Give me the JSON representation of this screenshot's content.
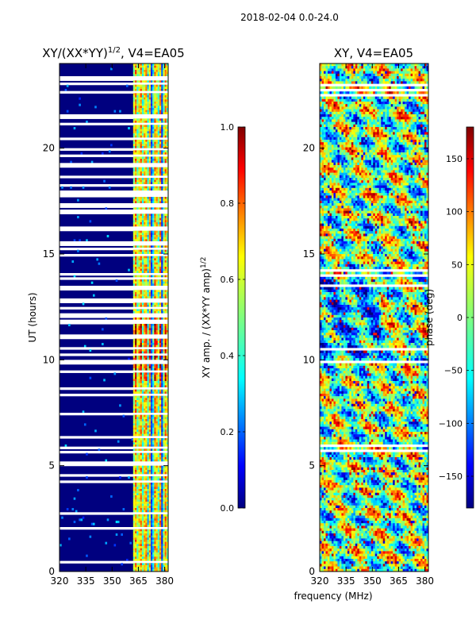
{
  "suptitle": "2018-02-04 0.0-24.0",
  "colors": {
    "jet": [
      "#00007f",
      "#0000ff",
      "#007fff",
      "#00ffff",
      "#7fff7f",
      "#ffff00",
      "#ff7f00",
      "#ff0000",
      "#7f0000"
    ],
    "blank_row": "#ffffff"
  },
  "chart_data": [
    {
      "type": "heatmap",
      "title_main": "XY/(XX*YY)",
      "title_exponent": "1/2",
      "title_tail": ", V4=EA05",
      "xlabel": "",
      "ylabel": "UT (hours)",
      "xlim": [
        320,
        382
      ],
      "ylim": [
        0,
        24
      ],
      "xticks": [
        320,
        335,
        350,
        365,
        380
      ],
      "yticks": [
        0,
        5,
        10,
        15,
        20
      ],
      "colorbar": {
        "label_main": "XY amp. / (XX*YY amp)",
        "label_exponent": "1/2",
        "range": [
          0.0,
          1.0
        ],
        "ticks": [
          "0.0",
          "0.2",
          "0.4",
          "0.6",
          "0.8",
          "1.0"
        ]
      },
      "blank_hours": [
        23.3,
        23.05,
        22.65,
        21.5,
        21.15,
        20.45,
        19.95,
        19.65,
        19.2,
        18.65,
        18.25,
        17.95,
        17.8,
        17.3,
        17.0,
        16.2,
        15.5,
        15.25,
        14.95,
        14.05,
        13.85,
        13.4,
        12.8,
        12.45,
        12.1,
        11.8,
        11.1,
        10.55,
        10.25,
        9.9,
        9.45,
        8.7,
        8.35,
        7.5,
        7.2,
        6.7,
        6.35,
        5.85,
        5.65,
        5.1,
        4.55,
        4.25,
        3.7,
        3.2,
        2.75,
        2.05,
        1.7,
        1.2,
        0.4
      ],
      "description": "amplitude ratio is near 0.0 below 362 MHz and 0.3-0.9 with vertical stripes between 362 and 381 MHz, strongest between 9 and 12 UT"
    },
    {
      "type": "heatmap",
      "title": "XY, V4=EA05",
      "xlabel": "frequency (MHz)",
      "ylabel": "",
      "xlim": [
        320,
        382
      ],
      "ylim": [
        0,
        24
      ],
      "xticks": [
        320,
        335,
        350,
        365,
        380
      ],
      "yticks": [
        0,
        5,
        10,
        15,
        20
      ],
      "colorbar": {
        "label": "phase (deg)",
        "range": [
          -180,
          180
        ],
        "ticks": [
          "−150",
          "−100",
          "−50",
          "0",
          "50",
          "100",
          "150"
        ]
      },
      "blank_hours": [
        23.0,
        22.7,
        22.55,
        14.2,
        13.95,
        13.5,
        10.45,
        9.95,
        5.9,
        5.65
      ],
      "description": "phase varies over the full range; noisy turquoise/green/yellow background with red and blue streaks"
    }
  ]
}
